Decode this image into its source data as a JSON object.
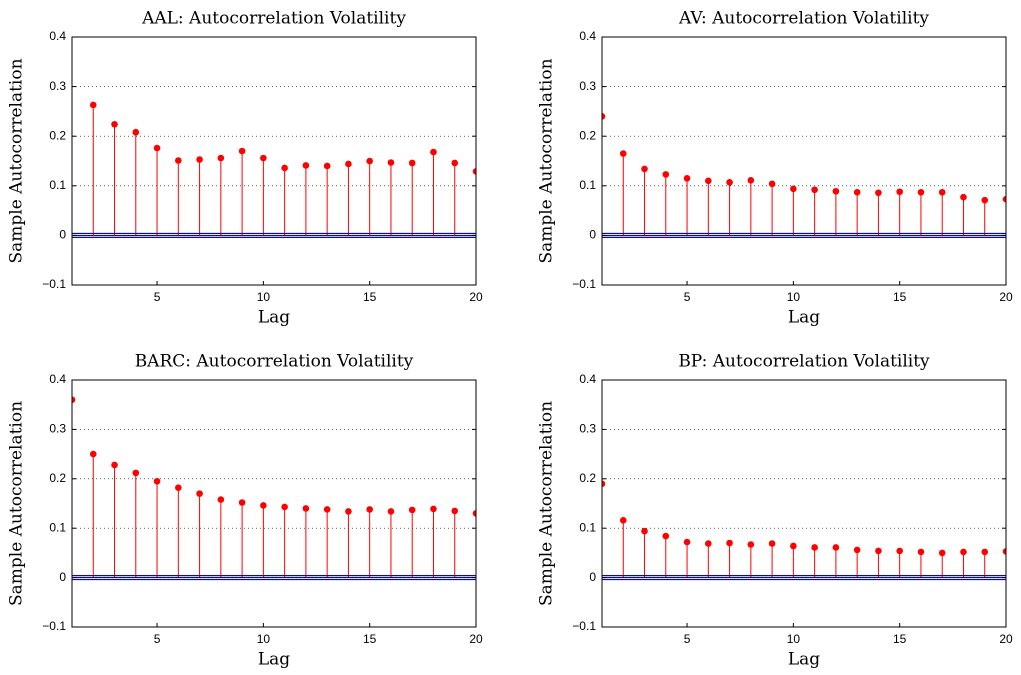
{
  "chart_data": [
    {
      "type": "stem",
      "title": "AAL: Autocorrelation Volatility",
      "xlabel": "Lag",
      "ylabel": "Sample Autocorrelation",
      "x": [
        1,
        2,
        3,
        4,
        5,
        6,
        7,
        8,
        9,
        10,
        11,
        12,
        13,
        14,
        15,
        16,
        17,
        18,
        19,
        20
      ],
      "values": [
        null,
        0.263,
        0.224,
        0.208,
        0.176,
        0.151,
        0.153,
        0.156,
        0.17,
        0.156,
        0.136,
        0.141,
        0.14,
        0.144,
        0.15,
        0.147,
        0.146,
        0.168,
        0.146,
        0.129
      ],
      "color": "#ff0000",
      "bounds": [
        0.004,
        -0.004
      ],
      "bounds_color": "#0000ff",
      "xlim": [
        1,
        20
      ],
      "ylim": [
        -0.1,
        0.4
      ],
      "xticks": [
        5,
        10,
        15,
        20
      ],
      "yticks": [
        {
          "value": -0.1,
          "label": "−0.1"
        },
        0,
        0.1,
        0.2,
        0.3,
        0.4
      ],
      "grid": true
    },
    {
      "type": "stem",
      "title": "AV: Autocorrelation Volatility",
      "xlabel": "Lag",
      "ylabel": "Sample Autocorrelation",
      "x": [
        1,
        2,
        3,
        4,
        5,
        6,
        7,
        8,
        9,
        10,
        11,
        12,
        13,
        14,
        15,
        16,
        17,
        18,
        19,
        20
      ],
      "values": [
        0.24,
        0.165,
        0.134,
        0.123,
        0.115,
        0.11,
        0.107,
        0.111,
        0.104,
        0.094,
        0.092,
        0.089,
        0.087,
        0.086,
        0.088,
        0.087,
        0.087,
        0.077,
        0.071,
        0.073
      ],
      "color": "#ff0000",
      "bounds": [
        0.004,
        -0.004
      ],
      "bounds_color": "#0000ff",
      "xlim": [
        1,
        20
      ],
      "ylim": [
        -0.1,
        0.4
      ],
      "xticks": [
        5,
        10,
        15,
        20
      ],
      "yticks": [
        {
          "value": -0.1,
          "label": "−0.1"
        },
        0,
        0.1,
        0.2,
        0.3,
        0.4
      ],
      "grid": true
    },
    {
      "type": "stem",
      "title": "BARC: Autocorrelation Volatility",
      "xlabel": "Lag",
      "ylabel": "Sample Autocorrelation",
      "x": [
        1,
        2,
        3,
        4,
        5,
        6,
        7,
        8,
        9,
        10,
        11,
        12,
        13,
        14,
        15,
        16,
        17,
        18,
        19,
        20
      ],
      "values": [
        0.36,
        0.25,
        0.228,
        0.212,
        0.195,
        0.182,
        0.17,
        0.158,
        0.152,
        0.146,
        0.143,
        0.14,
        0.138,
        0.134,
        0.138,
        0.134,
        0.137,
        0.139,
        0.135,
        0.13
      ],
      "color": "#ff0000",
      "bounds": [
        0.004,
        -0.004
      ],
      "bounds_color": "#0000ff",
      "xlim": [
        1,
        20
      ],
      "ylim": [
        -0.1,
        0.4
      ],
      "xticks": [
        5,
        10,
        15,
        20
      ],
      "yticks": [
        {
          "value": -0.1,
          "label": "−0.1"
        },
        0,
        0.1,
        0.2,
        0.3,
        0.4
      ],
      "grid": true
    },
    {
      "type": "stem",
      "title": "BP: Autocorrelation Volatility",
      "xlabel": "Lag",
      "ylabel": "Sample Autocorrelation",
      "x": [
        1,
        2,
        3,
        4,
        5,
        6,
        7,
        8,
        9,
        10,
        11,
        12,
        13,
        14,
        15,
        16,
        17,
        18,
        19,
        20
      ],
      "values": [
        0.19,
        0.116,
        0.094,
        0.084,
        0.072,
        0.069,
        0.07,
        0.067,
        0.069,
        0.064,
        0.061,
        0.061,
        0.056,
        0.054,
        0.054,
        0.052,
        0.05,
        0.052,
        0.052,
        0.053
      ],
      "color": "#ff0000",
      "bounds": [
        0.004,
        -0.004
      ],
      "bounds_color": "#0000ff",
      "xlim": [
        1,
        20
      ],
      "ylim": [
        -0.1,
        0.4
      ],
      "xticks": [
        5,
        10,
        15,
        20
      ],
      "yticks": [
        {
          "value": -0.1,
          "label": "−0.1"
        },
        0,
        0.1,
        0.2,
        0.3,
        0.4
      ],
      "grid": true
    }
  ]
}
